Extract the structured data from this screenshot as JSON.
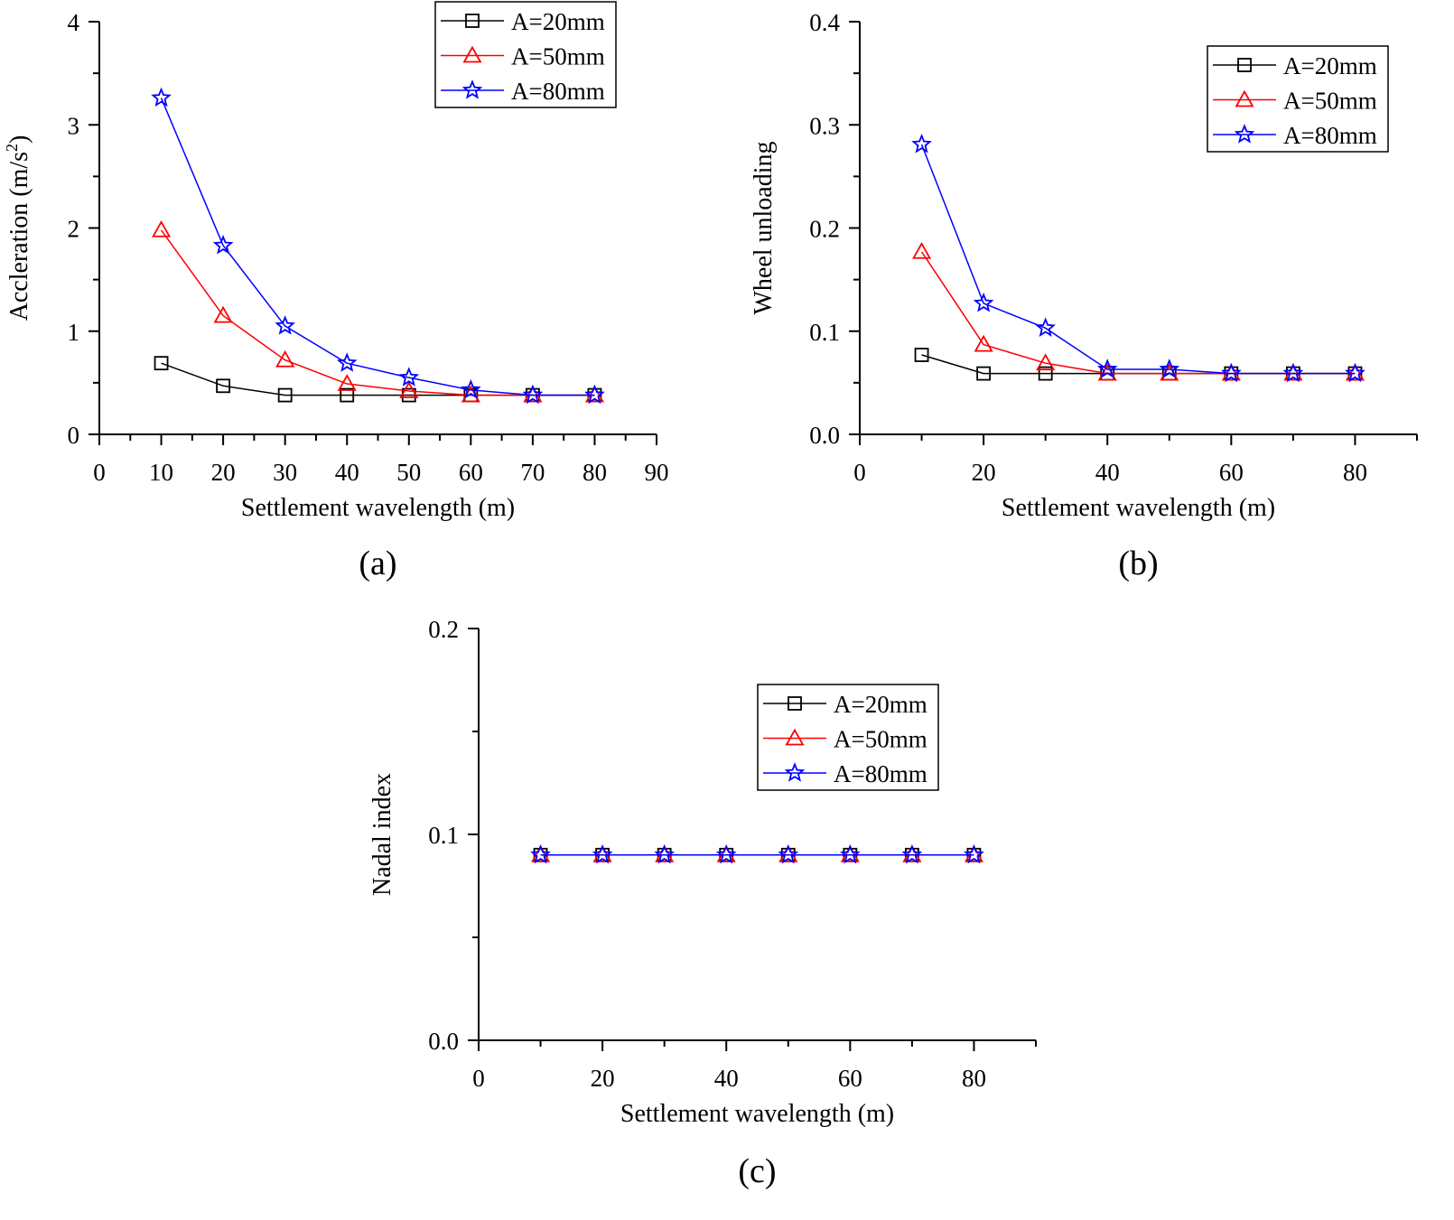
{
  "colors": {
    "A20": "#000000",
    "A50": "#ff0000",
    "A80": "#0000ff",
    "axis": "#000000"
  },
  "legend": [
    {
      "key": "A20",
      "label": "A=20mm",
      "marker": "square-icon"
    },
    {
      "key": "A50",
      "label": "A=50mm",
      "marker": "triangle-icon"
    },
    {
      "key": "A80",
      "label": "A=80mm",
      "marker": "star-icon"
    }
  ],
  "chart_data": [
    {
      "type": "line",
      "panel_label": "(a)",
      "xlabel": "Settlement wavelength (m)",
      "ylabel": "Accleration (m/s",
      "ylabel_sup": "2",
      "ylabel_tail": ")",
      "xlim": [
        0,
        90
      ],
      "ylim": [
        0,
        4
      ],
      "xticks": [
        0,
        10,
        20,
        30,
        40,
        50,
        60,
        70,
        80,
        90
      ],
      "yticks": [
        0,
        1,
        2,
        3,
        4
      ],
      "xtick_labels": [
        "0",
        "10",
        "20",
        "30",
        "40",
        "50",
        "60",
        "70",
        "80",
        "90"
      ],
      "ytick_labels": [
        "0",
        "1",
        "2",
        "3",
        "4"
      ],
      "legend_position": "top-right",
      "x": [
        10,
        20,
        30,
        40,
        50,
        60,
        70,
        80
      ],
      "series": [
        {
          "key": "A20",
          "name": "A=20mm",
          "values": [
            0.69,
            0.47,
            0.38,
            0.38,
            0.38,
            0.38,
            0.38,
            0.38
          ]
        },
        {
          "key": "A50",
          "name": "A=50mm",
          "values": [
            1.98,
            1.15,
            0.72,
            0.49,
            0.42,
            0.38,
            0.38,
            0.38
          ]
        },
        {
          "key": "A80",
          "name": "A=80mm",
          "values": [
            3.26,
            1.83,
            1.05,
            0.69,
            0.55,
            0.43,
            0.38,
            0.38
          ]
        }
      ]
    },
    {
      "type": "line",
      "panel_label": "(b)",
      "xlabel": "Settlement wavelength (m)",
      "ylabel": "Wheel unloading",
      "xlim": [
        0,
        90
      ],
      "ylim": [
        0,
        0.4
      ],
      "xticks": [
        0,
        20,
        40,
        60,
        80
      ],
      "yticks": [
        0,
        0.1,
        0.2,
        0.3,
        0.4
      ],
      "xtick_labels": [
        "0",
        "20",
        "40",
        "60",
        "80"
      ],
      "ytick_labels": [
        "0.0",
        "0.1",
        "0.2",
        "0.3",
        "0.4"
      ],
      "legend_position": "top-right",
      "x": [
        10,
        20,
        30,
        40,
        50,
        60,
        70,
        80
      ],
      "series": [
        {
          "key": "A20",
          "name": "A=20mm",
          "values": [
            0.077,
            0.059,
            0.059,
            0.059,
            0.059,
            0.059,
            0.059,
            0.059
          ]
        },
        {
          "key": "A50",
          "name": "A=50mm",
          "values": [
            0.177,
            0.087,
            0.069,
            0.059,
            0.059,
            0.059,
            0.059,
            0.059
          ]
        },
        {
          "key": "A80",
          "name": "A=80mm",
          "values": [
            0.281,
            0.127,
            0.103,
            0.063,
            0.063,
            0.059,
            0.059,
            0.059
          ]
        }
      ]
    },
    {
      "type": "line",
      "panel_label": "(c)",
      "xlabel": "Settlement wavelength (m)",
      "ylabel": "Nadal index",
      "xlim": [
        0,
        90
      ],
      "ylim": [
        0,
        0.2
      ],
      "xticks": [
        0,
        20,
        40,
        60,
        80
      ],
      "yticks": [
        0,
        0.1,
        0.2
      ],
      "xtick_labels": [
        "0",
        "20",
        "40",
        "60",
        "80"
      ],
      "ytick_labels": [
        "0.0",
        "0.1",
        "0.2"
      ],
      "legend_position": "upper-center",
      "x": [
        10,
        20,
        30,
        40,
        50,
        60,
        70,
        80
      ],
      "series": [
        {
          "key": "A20",
          "name": "A=20mm",
          "values": [
            0.09,
            0.09,
            0.09,
            0.09,
            0.09,
            0.09,
            0.09,
            0.09
          ]
        },
        {
          "key": "A50",
          "name": "A=50mm",
          "values": [
            0.09,
            0.09,
            0.09,
            0.09,
            0.09,
            0.09,
            0.09,
            0.09
          ]
        },
        {
          "key": "A80",
          "name": "A=80mm",
          "values": [
            0.09,
            0.09,
            0.09,
            0.09,
            0.09,
            0.09,
            0.09,
            0.09
          ]
        }
      ]
    }
  ]
}
